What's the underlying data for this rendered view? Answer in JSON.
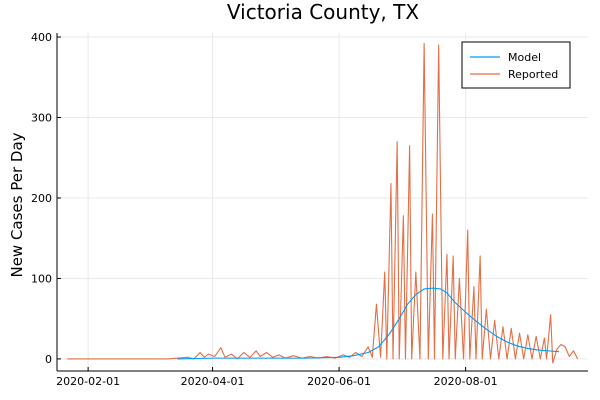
{
  "chart_data": {
    "type": "line",
    "title": "Victoria County, TX",
    "xlabel": "",
    "ylabel": "New Cases Per Day",
    "x_ticks": [
      "2020-02-01",
      "2020-04-01",
      "2020-06-01",
      "2020-08-01"
    ],
    "y_ticks": [
      0,
      100,
      200,
      300,
      400
    ],
    "xlim": [
      "2020-01-17",
      "2020-09-29"
    ],
    "ylim": [
      -15,
      405
    ],
    "grid": true,
    "legend_position": "top-right",
    "series": [
      {
        "name": "Model",
        "color": "#009AFA",
        "points": [
          [
            "2020-03-15",
            0
          ],
          [
            "2020-04-01",
            1
          ],
          [
            "2020-04-15",
            1
          ],
          [
            "2020-05-01",
            1
          ],
          [
            "2020-05-15",
            1
          ],
          [
            "2020-06-01",
            2
          ],
          [
            "2020-06-08",
            4
          ],
          [
            "2020-06-15",
            8
          ],
          [
            "2020-06-20",
            15
          ],
          [
            "2020-06-25",
            30
          ],
          [
            "2020-06-30",
            50
          ],
          [
            "2020-07-04",
            68
          ],
          [
            "2020-07-08",
            80
          ],
          [
            "2020-07-12",
            87
          ],
          [
            "2020-07-16",
            88
          ],
          [
            "2020-07-20",
            87
          ],
          [
            "2020-07-23",
            82
          ],
          [
            "2020-07-27",
            70
          ],
          [
            "2020-08-01",
            58
          ],
          [
            "2020-08-06",
            47
          ],
          [
            "2020-08-11",
            37
          ],
          [
            "2020-08-16",
            28
          ],
          [
            "2020-08-21",
            21
          ],
          [
            "2020-08-26",
            16
          ],
          [
            "2020-08-31",
            13
          ],
          [
            "2020-09-05",
            11
          ],
          [
            "2020-09-10",
            10
          ],
          [
            "2020-09-15",
            9
          ]
        ]
      },
      {
        "name": "Reported",
        "color": "#E26F46",
        "points": [
          [
            "2020-01-22",
            0
          ],
          [
            "2020-03-10",
            0
          ],
          [
            "2020-03-20",
            2
          ],
          [
            "2020-03-23",
            0
          ],
          [
            "2020-03-26",
            8
          ],
          [
            "2020-03-28",
            2
          ],
          [
            "2020-03-30",
            6
          ],
          [
            "2020-04-02",
            3
          ],
          [
            "2020-04-05",
            14
          ],
          [
            "2020-04-07",
            2
          ],
          [
            "2020-04-10",
            6
          ],
          [
            "2020-04-13",
            0
          ],
          [
            "2020-04-16",
            8
          ],
          [
            "2020-04-19",
            2
          ],
          [
            "2020-04-22",
            10
          ],
          [
            "2020-04-24",
            3
          ],
          [
            "2020-04-27",
            8
          ],
          [
            "2020-04-30",
            2
          ],
          [
            "2020-05-03",
            5
          ],
          [
            "2020-05-06",
            1
          ],
          [
            "2020-05-10",
            4
          ],
          [
            "2020-05-14",
            1
          ],
          [
            "2020-05-18",
            3
          ],
          [
            "2020-05-22",
            1
          ],
          [
            "2020-05-26",
            3
          ],
          [
            "2020-05-30",
            1
          ],
          [
            "2020-06-03",
            5
          ],
          [
            "2020-06-06",
            2
          ],
          [
            "2020-06-09",
            8
          ],
          [
            "2020-06-12",
            3
          ],
          [
            "2020-06-15",
            15
          ],
          [
            "2020-06-17",
            2
          ],
          [
            "2020-06-19",
            68
          ],
          [
            "2020-06-21",
            2
          ],
          [
            "2020-06-23",
            108
          ],
          [
            "2020-06-24",
            0
          ],
          [
            "2020-06-26",
            218
          ],
          [
            "2020-06-27",
            0
          ],
          [
            "2020-06-29",
            270
          ],
          [
            "2020-06-30",
            0
          ],
          [
            "2020-07-02",
            178
          ],
          [
            "2020-07-03",
            0
          ],
          [
            "2020-07-05",
            265
          ],
          [
            "2020-07-06",
            0
          ],
          [
            "2020-07-08",
            108
          ],
          [
            "2020-07-10",
            0
          ],
          [
            "2020-07-12",
            392
          ],
          [
            "2020-07-14",
            0
          ],
          [
            "2020-07-16",
            180
          ],
          [
            "2020-07-17",
            0
          ],
          [
            "2020-07-19",
            390
          ],
          [
            "2020-07-21",
            0
          ],
          [
            "2020-07-23",
            130
          ],
          [
            "2020-07-24",
            0
          ],
          [
            "2020-07-26",
            128
          ],
          [
            "2020-07-27",
            0
          ],
          [
            "2020-07-29",
            100
          ],
          [
            "2020-07-31",
            0
          ],
          [
            "2020-08-02",
            160
          ],
          [
            "2020-08-03",
            0
          ],
          [
            "2020-08-05",
            90
          ],
          [
            "2020-08-06",
            0
          ],
          [
            "2020-08-08",
            128
          ],
          [
            "2020-08-09",
            0
          ],
          [
            "2020-08-11",
            62
          ],
          [
            "2020-08-13",
            0
          ],
          [
            "2020-08-15",
            48
          ],
          [
            "2020-08-17",
            0
          ],
          [
            "2020-08-19",
            40
          ],
          [
            "2020-08-21",
            0
          ],
          [
            "2020-08-23",
            38
          ],
          [
            "2020-08-25",
            0
          ],
          [
            "2020-08-27",
            32
          ],
          [
            "2020-08-29",
            0
          ],
          [
            "2020-08-31",
            30
          ],
          [
            "2020-09-02",
            0
          ],
          [
            "2020-09-04",
            28
          ],
          [
            "2020-09-06",
            0
          ],
          [
            "2020-09-08",
            26
          ],
          [
            "2020-09-09",
            0
          ],
          [
            "2020-09-11",
            55
          ],
          [
            "2020-09-12",
            -5
          ],
          [
            "2020-09-14",
            12
          ],
          [
            "2020-09-16",
            18
          ],
          [
            "2020-09-18",
            15
          ],
          [
            "2020-09-20",
            3
          ],
          [
            "2020-09-22",
            10
          ],
          [
            "2020-09-24",
            0
          ]
        ]
      }
    ]
  }
}
